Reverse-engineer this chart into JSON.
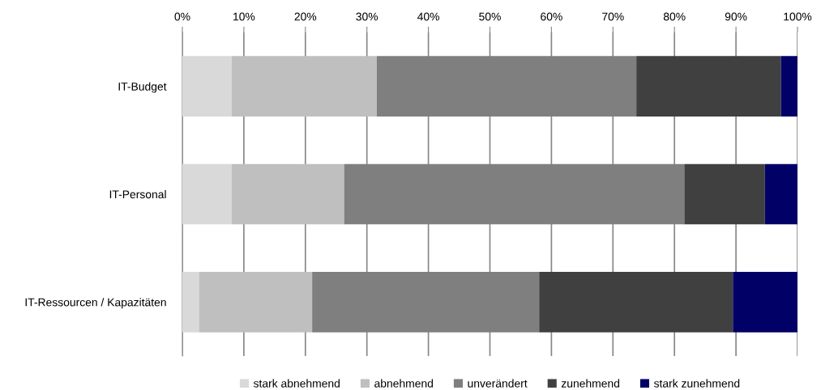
{
  "chart_data": {
    "type": "bar",
    "orientation": "horizontal",
    "stacked": true,
    "categories": [
      "IT-Budget",
      "IT-Personal",
      "IT-Ressourcen / Kapazitäten"
    ],
    "series": [
      {
        "name": "stark abnehmend",
        "color": "#d9d9d9",
        "values": [
          8.0,
          8.0,
          2.7
        ]
      },
      {
        "name": "abnehmend",
        "color": "#bfbfbf",
        "values": [
          23.6,
          18.3,
          18.4
        ]
      },
      {
        "name": "unverändert",
        "color": "#7f7f7f",
        "values": [
          42.2,
          55.3,
          36.9
        ]
      },
      {
        "name": "zunehmend",
        "color": "#404040",
        "values": [
          23.5,
          13.1,
          31.5
        ]
      },
      {
        "name": "stark zunehmend",
        "color": "#000066",
        "values": [
          2.7,
          5.3,
          10.5
        ]
      }
    ],
    "xlim": [
      0,
      100
    ],
    "xticks": [
      {
        "value": 0,
        "label": "0%"
      },
      {
        "value": 10,
        "label": "10%"
      },
      {
        "value": 20,
        "label": "20%"
      },
      {
        "value": 30,
        "label": "30%"
      },
      {
        "value": 40,
        "label": "40%"
      },
      {
        "value": 50,
        "label": "50%"
      },
      {
        "value": 60,
        "label": "60%"
      },
      {
        "value": 70,
        "label": "70%"
      },
      {
        "value": 80,
        "label": "80%"
      },
      {
        "value": 90,
        "label": "90%"
      },
      {
        "value": 100,
        "label": "100%"
      }
    ],
    "grid": "x",
    "legend": "bottom"
  }
}
